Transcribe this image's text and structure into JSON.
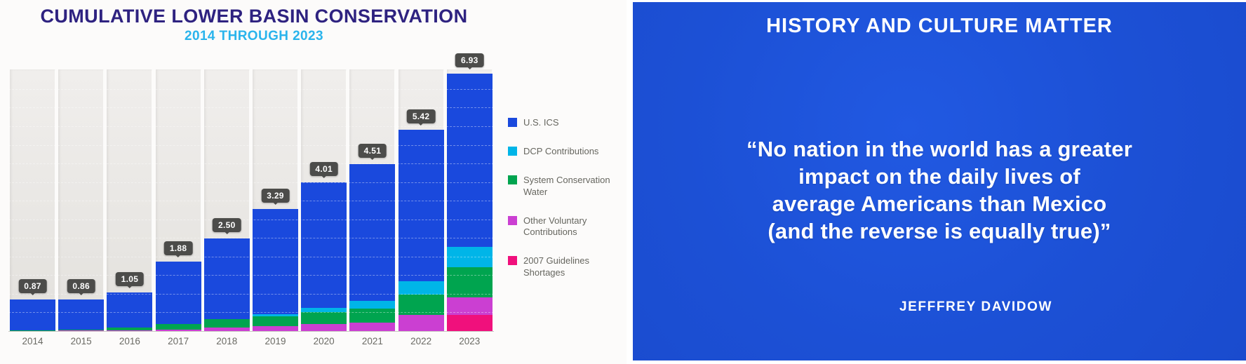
{
  "left_slide": {
    "title": "CUMULATIVE LOWER BASIN CONSERVATION",
    "subtitle": "2014 THROUGH 2023",
    "legend": [
      {
        "label": "U.S. ICS",
        "color": "#1a49dd"
      },
      {
        "label": "DCP Contributions",
        "color": "#00b5e8"
      },
      {
        "label": "System Conservation Water",
        "color": "#00a44f"
      },
      {
        "label": "Other Voluntary Contributions",
        "color": "#cb3fd2"
      },
      {
        "label": "2007 Guidelines Shortages",
        "color": "#f0107c"
      }
    ]
  },
  "chart_data": {
    "type": "bar",
    "stacked": true,
    "title": "CUMULATIVE LOWER BASIN CONSERVATION",
    "subtitle": "2014 THROUGH 2023",
    "categories": [
      "2014",
      "2015",
      "2016",
      "2017",
      "2018",
      "2019",
      "2020",
      "2021",
      "2022",
      "2023"
    ],
    "totals": [
      "0.87",
      "0.86",
      "1.05",
      "1.88",
      "2.50",
      "3.29",
      "4.01",
      "4.51",
      "5.42",
      "6.93"
    ],
    "series": [
      {
        "name": "2007 Guidelines Shortages",
        "color": "#f0107c",
        "values": [
          0,
          0,
          0,
          0,
          0,
          0,
          0,
          0,
          0,
          0.45
        ]
      },
      {
        "name": "Other Voluntary Contributions",
        "color": "#cb3fd2",
        "values": [
          0.02,
          0.03,
          0.04,
          0.06,
          0.12,
          0.16,
          0.2,
          0.25,
          0.45,
          0.48
        ]
      },
      {
        "name": "System Conservation Water",
        "color": "#00a44f",
        "values": [
          0.02,
          0.03,
          0.08,
          0.14,
          0.22,
          0.26,
          0.32,
          0.38,
          0.55,
          0.8
        ]
      },
      {
        "name": "DCP Contributions",
        "color": "#00b5e8",
        "values": [
          0,
          0,
          0,
          0,
          0,
          0.05,
          0.12,
          0.2,
          0.36,
          0.55
        ]
      },
      {
        "name": "U.S. ICS",
        "color": "#1a49dd",
        "values": [
          0.83,
          0.8,
          0.93,
          1.68,
          2.16,
          2.82,
          3.37,
          3.68,
          4.06,
          4.65
        ]
      }
    ],
    "ylim": [
      0,
      7
    ],
    "grid": "dashed-horizontal",
    "legend_position": "right"
  },
  "right_slide": {
    "title": "HISTORY AND CULTURE MATTER",
    "quote_lines": [
      "“No nation in the world has a greater",
      "impact on the daily lives of",
      "average Americans than Mexico",
      "(and the reverse is equally true)”"
    ],
    "attribution": "JEFFFREY DAVIDOW"
  }
}
